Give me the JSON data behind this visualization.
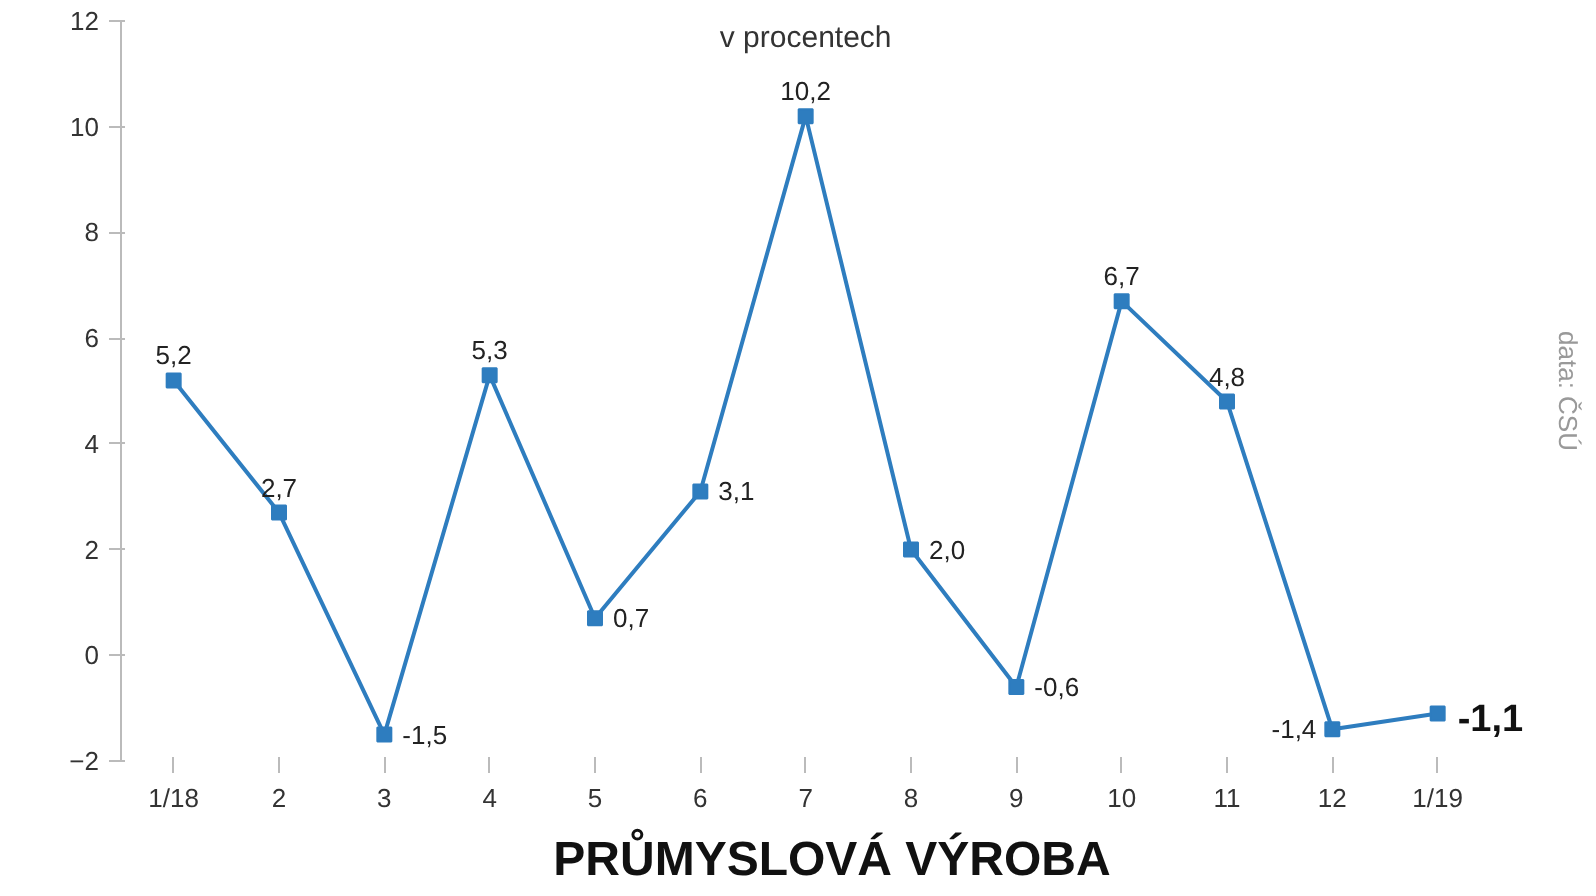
{
  "chart_data": {
    "type": "line",
    "title": "PRŮMYSLOVÁ VÝROBA",
    "subtitle": "v procentech",
    "annotations": [
      "data: ČSÚ"
    ],
    "categories": [
      "1/18",
      "2",
      "3",
      "4",
      "5",
      "6",
      "7",
      "8",
      "9",
      "10",
      "11",
      "12",
      "1/19"
    ],
    "series": [
      {
        "color": "#2e7dbf",
        "values": [
          5.2,
          2.7,
          -1.5,
          5.3,
          0.7,
          3.1,
          10.2,
          2.0,
          -0.6,
          6.7,
          4.8,
          -1.4,
          -1.1
        ],
        "value_labels": [
          "5,2",
          "2,7",
          "-1,5",
          "5,3",
          "0,7",
          "3,1",
          "10,2",
          "2,0",
          "-0,6",
          "6,7",
          "4,8",
          "-1,4",
          "-1,1"
        ]
      }
    ],
    "ylim": [
      -2,
      12
    ],
    "yticks": [
      -2,
      0,
      2,
      4,
      6,
      8,
      10,
      12
    ],
    "marker": "square",
    "line_style": "solid",
    "grid": false
  }
}
